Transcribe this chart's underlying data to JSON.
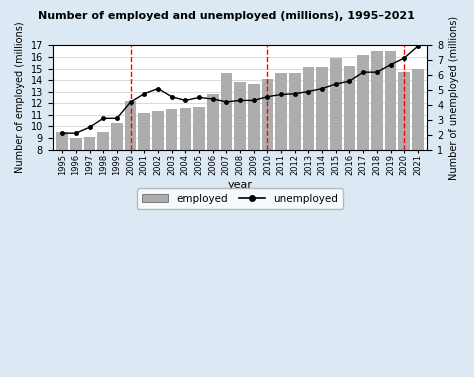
{
  "title": "Number of employed and unemployed (millions), 1995–2021",
  "years": [
    1995,
    1996,
    1997,
    1998,
    1999,
    2000,
    2001,
    2002,
    2003,
    2004,
    2005,
    2006,
    2007,
    2008,
    2009,
    2010,
    2011,
    2012,
    2013,
    2014,
    2015,
    2016,
    2017,
    2018,
    2019,
    2020,
    2021
  ],
  "employed": [
    9.5,
    9.0,
    9.1,
    9.5,
    10.3,
    12.2,
    11.2,
    11.3,
    11.5,
    11.6,
    11.7,
    12.8,
    14.6,
    13.8,
    13.7,
    14.1,
    14.6,
    14.6,
    15.1,
    15.1,
    15.9,
    15.2,
    16.2,
    16.5,
    16.5,
    14.7,
    15.0
  ],
  "unemployed": [
    2.1,
    2.1,
    2.5,
    3.1,
    3.1,
    4.2,
    4.75,
    5.1,
    4.55,
    4.3,
    4.5,
    4.4,
    4.2,
    4.3,
    4.3,
    4.55,
    4.7,
    4.75,
    4.9,
    5.1,
    5.4,
    5.6,
    6.2,
    6.2,
    6.7,
    7.15,
    7.95
  ],
  "dashed_lines": [
    2000,
    2010,
    2020
  ],
  "bar_color": "#adadad",
  "line_color": "#000000",
  "fig_background_color": "#dce9f5",
  "plot_background_color": "#ffffff",
  "ylabel_left": "Number of employed (millions)",
  "ylabel_right": "Number of unemployed (millions)",
  "xlabel": "year",
  "ylim_left": [
    8,
    17
  ],
  "ylim_right": [
    1,
    8
  ],
  "yticks_left": [
    8,
    9,
    10,
    11,
    12,
    13,
    14,
    15,
    16,
    17
  ],
  "yticks_right": [
    1,
    2,
    3,
    4,
    5,
    6,
    7,
    8
  ]
}
